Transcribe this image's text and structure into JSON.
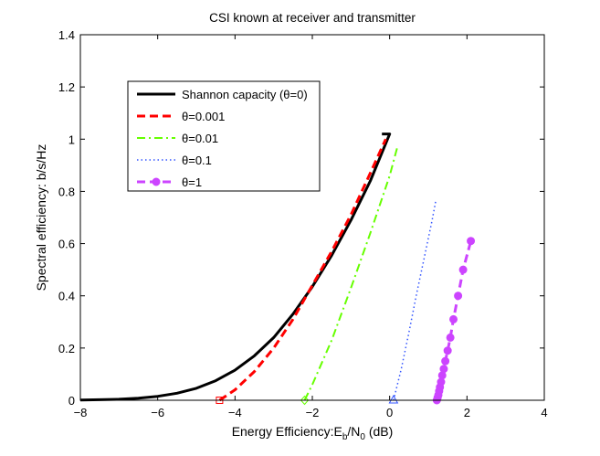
{
  "chart_data": {
    "type": "line",
    "title": "CSI known at receiver and transmitter",
    "xlabel": "Energy Efficiency:E_b/N_0 (dB)",
    "xlabel_parts": {
      "main": "Energy Efficiency:E",
      "sub1": "b",
      "mid": "/N",
      "sub2": "0",
      "tail": " (dB)"
    },
    "ylabel": "Spectral efficiency: b/s/Hz",
    "xlim": [
      -8,
      4
    ],
    "ylim": [
      0,
      1.4
    ],
    "xticks": [
      -8,
      -6,
      -4,
      -2,
      0,
      2,
      4
    ],
    "yticks": [
      0,
      0.2,
      0.4,
      0.6,
      0.8,
      1,
      1.2,
      1.4
    ],
    "xtick_labels": [
      "−8",
      "−6",
      "−4",
      "−2",
      "0",
      "2",
      "4"
    ],
    "ytick_labels": [
      "0",
      "0.2",
      "0.4",
      "0.6",
      "0.8",
      "1",
      "1.2",
      "1.4"
    ],
    "grid": false,
    "legend_position": "upper-left",
    "series": [
      {
        "name": "Shannon capacity (θ=0)",
        "color": "#000000",
        "style": "solid",
        "marker": "none",
        "x": [
          -8,
          -7.5,
          -7,
          -6.5,
          -6,
          -5.5,
          -5,
          -4.5,
          -4,
          -3.5,
          -3,
          -2.5,
          -2,
          -1.5,
          -1,
          -0.5,
          0,
          -0.2
        ],
        "y": [
          0.001,
          0.002,
          0.004,
          0.008,
          0.015,
          0.027,
          0.046,
          0.075,
          0.115,
          0.17,
          0.24,
          0.33,
          0.435,
          0.555,
          0.69,
          0.84,
          1.02,
          1.02
        ]
      },
      {
        "name": "θ=0.001",
        "color": "#ff0000",
        "style": "dashed",
        "marker": "square",
        "marker_x": -4.4,
        "marker_y": 0,
        "x": [
          -4.4,
          -4.0,
          -3.5,
          -3.0,
          -2.5,
          -2.0,
          -1.5,
          -1.0,
          -0.5,
          -0.1
        ],
        "y": [
          0.0,
          0.04,
          0.11,
          0.2,
          0.31,
          0.44,
          0.57,
          0.71,
          0.87,
          1.0
        ]
      },
      {
        "name": "θ=0.01",
        "color": "#66ff00",
        "style": "dashdot",
        "marker": "diamond",
        "marker_x": -2.2,
        "marker_y": 0,
        "x": [
          -2.2,
          -2.0,
          -1.5,
          -1.0,
          -0.5,
          0.0,
          0.2
        ],
        "y": [
          0.0,
          0.06,
          0.23,
          0.43,
          0.64,
          0.86,
          0.97
        ]
      },
      {
        "name": "θ=0.1",
        "color": "#3355ff",
        "style": "dotted",
        "marker": "triangle",
        "marker_x": 0.1,
        "marker_y": 0,
        "x": [
          0.1,
          0.3,
          0.5,
          0.7,
          0.9,
          1.1,
          1.2
        ],
        "y": [
          0.0,
          0.12,
          0.26,
          0.41,
          0.55,
          0.69,
          0.77
        ]
      },
      {
        "name": "θ=1",
        "color": "#cc44ff",
        "style": "dashed",
        "marker": "circle",
        "x": [
          1.22,
          1.24,
          1.26,
          1.28,
          1.3,
          1.33,
          1.36,
          1.4,
          1.44,
          1.5,
          1.57,
          1.65,
          1.77,
          1.9,
          2.1
        ],
        "y": [
          0.0,
          0.01,
          0.02,
          0.035,
          0.05,
          0.07,
          0.095,
          0.12,
          0.15,
          0.19,
          0.24,
          0.31,
          0.4,
          0.5,
          0.61
        ]
      }
    ]
  }
}
